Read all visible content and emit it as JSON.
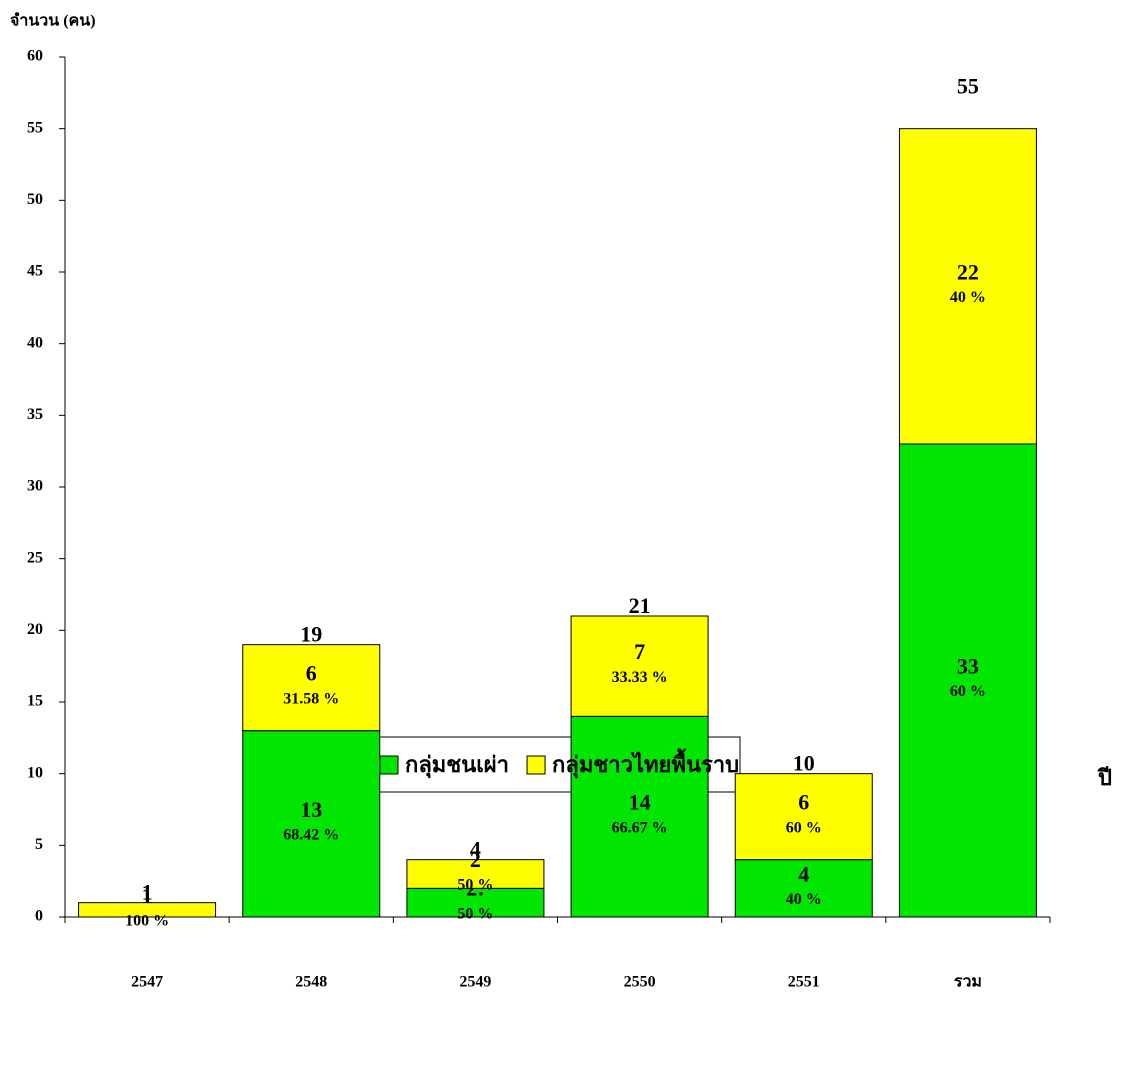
{
  "chart_data": {
    "type": "stacked_bar",
    "y_label": "จำนวน (คน)",
    "x_label": "ปี",
    "categories": [
      "2547",
      "2548",
      "2549",
      "2550",
      "2551",
      "รวม"
    ],
    "series": [
      {
        "name": "กลุ่มชนเผ่า",
        "color": "#00e600",
        "values": [
          0,
          13,
          2,
          14,
          4,
          33
        ],
        "value_labels": [
          null,
          "13",
          "2:",
          "14",
          "4",
          "33"
        ],
        "percent_labels": [
          null,
          "68.42 %",
          "50 %",
          "66.67 %",
          "40 %",
          "60 %"
        ]
      },
      {
        "name": "กลุ่มชาวไทยพื้นราบ",
        "color": "#ffff00",
        "values": [
          1,
          6,
          2,
          7,
          6,
          22
        ],
        "percent_labels": [
          "100 %",
          "31.58 %",
          "50 %",
          "33.33 %",
          "60 %",
          "40 %"
        ]
      }
    ],
    "total_labels": [
      1,
      19,
      4,
      21,
      10,
      55
    ],
    "ylim": [
      0,
      60
    ],
    "yticks": [
      0,
      5,
      10,
      15,
      20,
      25,
      30,
      35,
      40,
      45,
      50,
      55,
      60
    ]
  }
}
